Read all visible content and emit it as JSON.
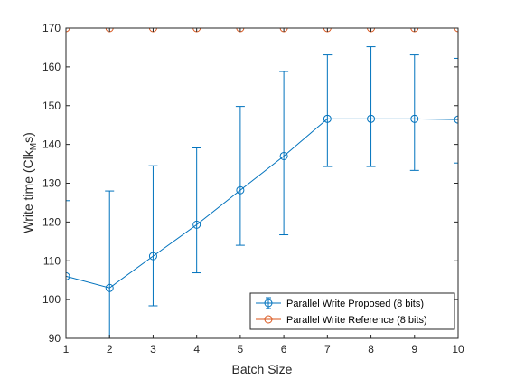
{
  "chart_data": {
    "type": "line",
    "title": "",
    "xlabel": "Batch Size",
    "ylabel_main": "Write time (Clk",
    "ylabel_sub": "M",
    "ylabel_end": "s)",
    "x": [
      1,
      2,
      3,
      4,
      5,
      6,
      7,
      8,
      9,
      10
    ],
    "xlim": [
      1,
      10
    ],
    "ylim": [
      90,
      170
    ],
    "xticks": [
      1,
      2,
      3,
      4,
      5,
      6,
      7,
      8,
      9,
      10
    ],
    "yticks": [
      90,
      100,
      110,
      120,
      130,
      140,
      150,
      160,
      170
    ],
    "grid": false,
    "legend_position": "bottom-right",
    "series": [
      {
        "name": "Parallel Write Proposed (8 bits)",
        "color": "#0072BD",
        "marker": "circle",
        "values": [
          106,
          103,
          111.2,
          119.3,
          128.2,
          137,
          146.6,
          146.6,
          146.6,
          146.4
        ],
        "error_low": [
          87,
          90,
          98.4,
          106.9,
          114,
          116.7,
          134.3,
          134.3,
          133.3,
          135.2
        ],
        "error_high": [
          125.5,
          128,
          134.5,
          139.1,
          149.8,
          158.8,
          163.1,
          165.2,
          163.1,
          162.2
        ]
      },
      {
        "name": "Parallel Write Reference (8 bits)",
        "color": "#D95319",
        "marker": "circle",
        "values": [
          170,
          170,
          170,
          170,
          170,
          170,
          170,
          170,
          170,
          170
        ]
      }
    ]
  }
}
